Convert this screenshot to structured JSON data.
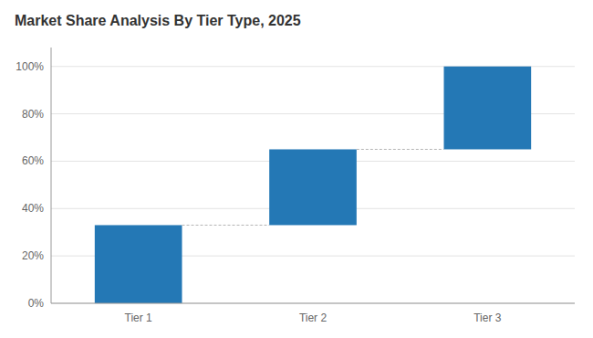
{
  "chart_data": {
    "type": "waterfall",
    "title": "Market Share Analysis By Tier Type, 2025",
    "categories": [
      "Tier 1",
      "Tier 2",
      "Tier 3"
    ],
    "values": [
      33,
      32,
      35
    ],
    "color": "#2478b5",
    "ylim": [
      0,
      108
    ],
    "yticks": [
      {
        "value": 0,
        "label": "0%"
      },
      {
        "value": 20,
        "label": "20%"
      },
      {
        "value": 40,
        "label": "40%"
      },
      {
        "value": 60,
        "label": "60%"
      },
      {
        "value": 80,
        "label": "80%"
      },
      {
        "value": 100,
        "label": "100%"
      }
    ],
    "grid": true
  }
}
